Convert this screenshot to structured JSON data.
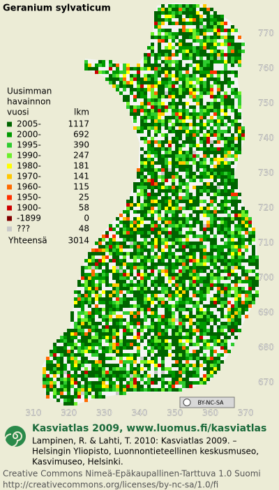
{
  "title": "Geranium sylvaticum",
  "legend": {
    "heading_lines": [
      "Uusimman",
      "havainnon"
    ],
    "year_header": "vuosi",
    "count_header": "lkm",
    "rows": [
      {
        "label": "2005-",
        "count": 1117,
        "color": "#006400"
      },
      {
        "label": "2000-",
        "count": 692,
        "color": "#009a00"
      },
      {
        "label": "1995-",
        "count": 390,
        "color": "#2ecc2e"
      },
      {
        "label": "1990-",
        "count": 247,
        "color": "#6cf02a"
      },
      {
        "label": "1980-",
        "count": 181,
        "color": "#ffff00"
      },
      {
        "label": "1970-",
        "count": 141,
        "color": "#ffc800"
      },
      {
        "label": "1960-",
        "count": 115,
        "color": "#ff6a00"
      },
      {
        "label": "1950-",
        "count": 25,
        "color": "#ff3000"
      },
      {
        "label": "1900-",
        "count": 58,
        "color": "#cc0000"
      },
      {
        "label": "-1899",
        "count": 0,
        "color": "#800000"
      },
      {
        "label": "???",
        "count": 48,
        "color": "#c8c8c8"
      }
    ],
    "total_label": "Yhteensä",
    "total": 3014
  },
  "axes": {
    "y_labels": [
      770,
      760,
      750,
      740,
      730,
      720,
      710,
      700,
      690,
      680,
      670
    ],
    "x_labels": [
      310,
      320,
      330,
      340,
      350,
      360,
      370
    ]
  },
  "license_badge": "BY-NC-SA",
  "footer": {
    "brand": "Kasviatlas 2009, www.luomus.fi/kasviatlas",
    "citation": [
      "Lampinen, R. & Lahti, T. 2010: Kasviatlas 2009. –",
      "Helsingin Yliopisto, Luonnontieteellinen keskusmuseo,",
      "Kasvimuseo, Helsinki."
    ],
    "license": [
      "Creative Commons Nimeä-Epäkaupallinen-Tarttuva 1.0 Suomi",
      "http://creativecommons.org/licenses/by-nc-sa/1.0/fi"
    ]
  }
}
